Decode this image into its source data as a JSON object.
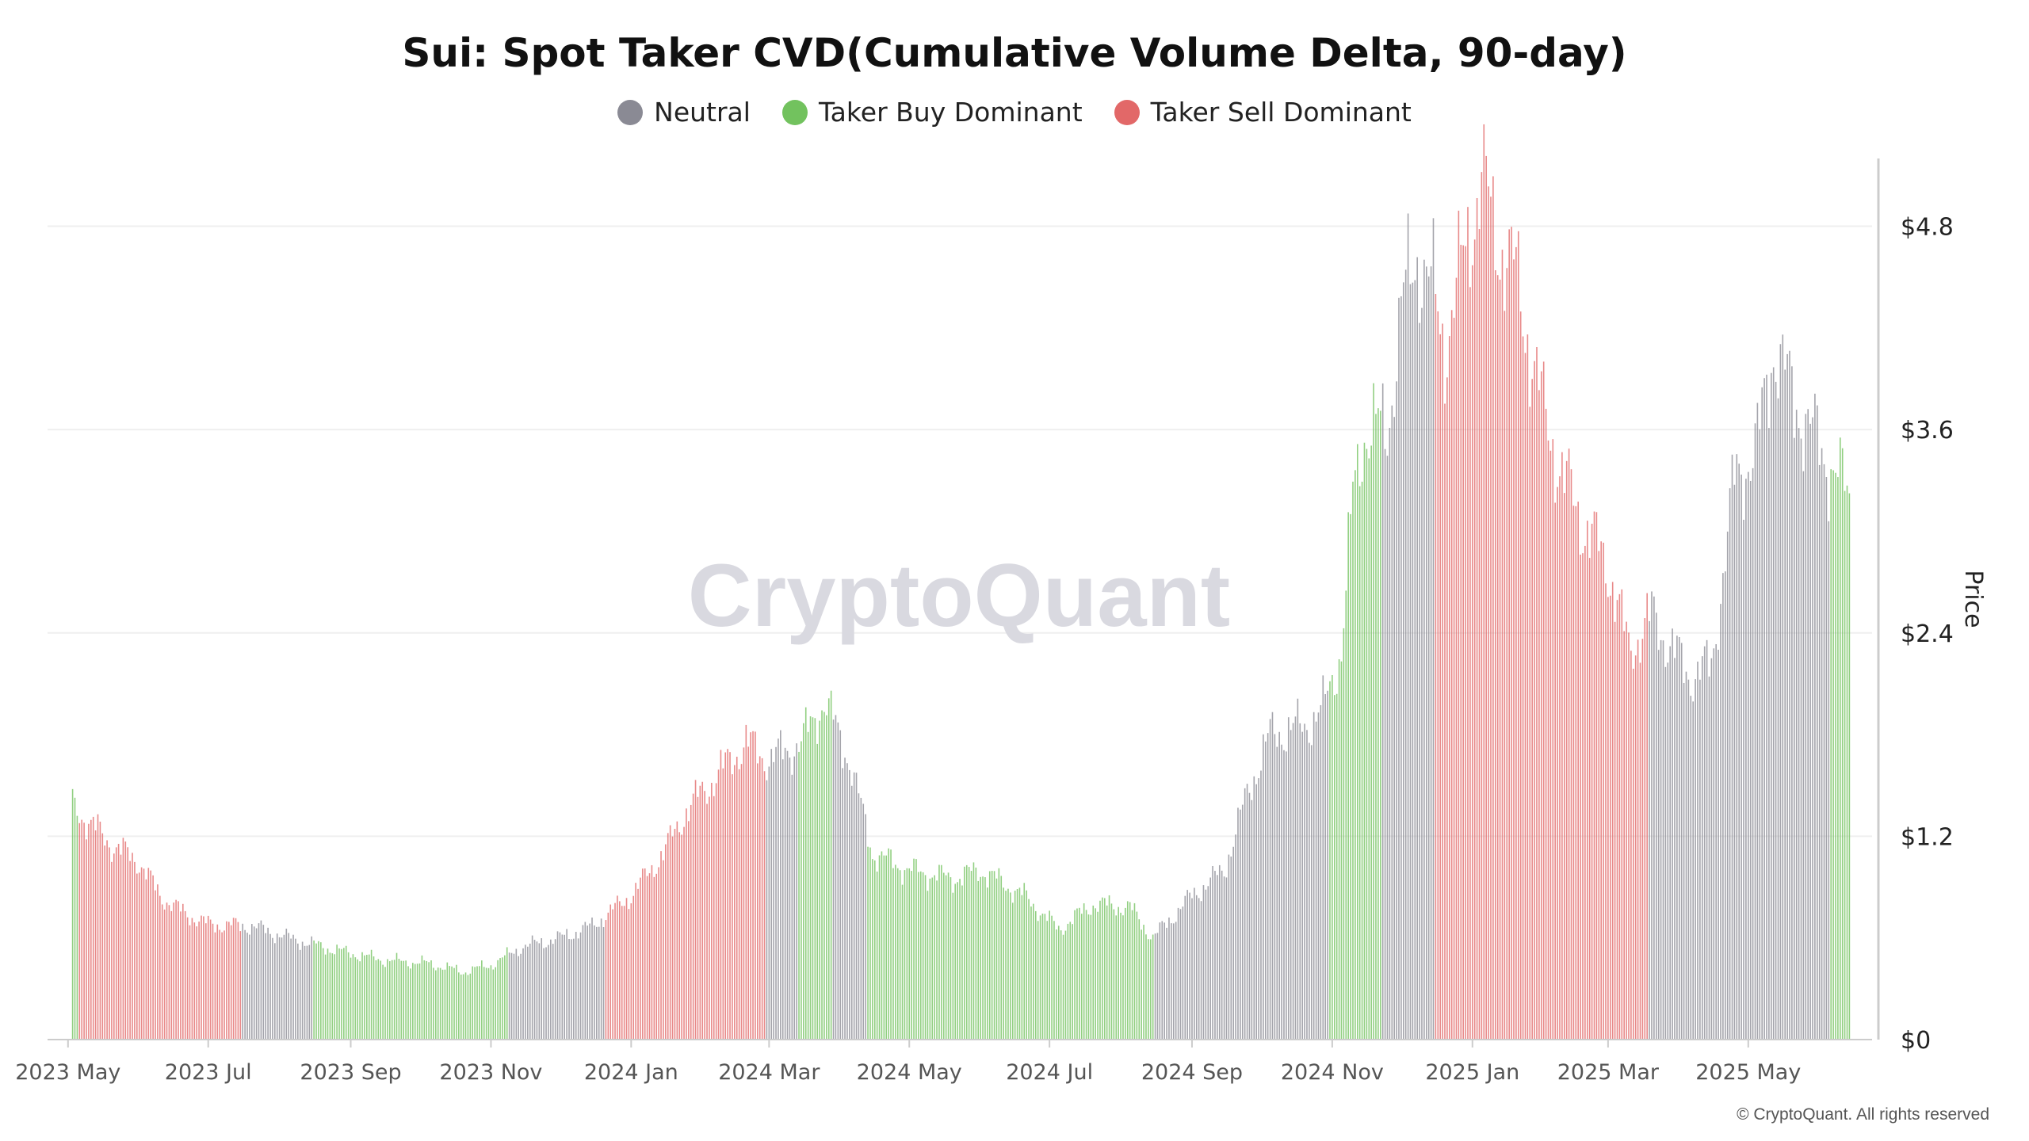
{
  "title": "Sui: Spot Taker CVD(Cumulative Volume Delta, 90-day)",
  "legend": [
    {
      "label": "Neutral",
      "color": "#8a8a94"
    },
    {
      "label": "Taker Buy Dominant",
      "color": "#72c25e"
    },
    {
      "label": "Taker Sell Dominant",
      "color": "#e26868"
    }
  ],
  "watermark": "CryptoQuant",
  "copyright": "© CryptoQuant. All rights reserved",
  "chart_data": {
    "type": "bar",
    "ylabel": "Price",
    "ylim": [
      0,
      5.2
    ],
    "yticks": [
      0,
      1.2,
      2.4,
      3.6,
      4.8
    ],
    "ytick_labels": [
      "$0",
      "$1.2",
      "$2.4",
      "$3.6",
      "$4.8"
    ],
    "x_tick_labels": [
      "2023 May",
      "2023 Jul",
      "2023 Sep",
      "2023 Nov",
      "2024 Jan",
      "2024 Mar",
      "2024 May",
      "2024 Jul",
      "2024 Sep",
      "2024 Nov",
      "2025 Jan",
      "2025 Mar",
      "2025 May"
    ],
    "grid": true,
    "legend_position": "top-center",
    "segments": [
      {
        "start": "2023-05-03",
        "end": "2023-05-05",
        "regime": "Taker Buy Dominant",
        "price_start": 1.38,
        "price_end": 1.35
      },
      {
        "start": "2023-05-06",
        "end": "2023-06-05",
        "regime": "Taker Sell Dominant",
        "price_start": 1.25,
        "price_end": 0.98
      },
      {
        "start": "2023-06-06",
        "end": "2023-07-15",
        "regime": "Taker Sell Dominant",
        "price_start": 0.95,
        "price_end": 0.62
      },
      {
        "start": "2023-07-16",
        "end": "2023-08-15",
        "regime": "Neutral",
        "price_start": 0.68,
        "price_end": 0.58
      },
      {
        "start": "2023-08-16",
        "end": "2023-09-20",
        "regime": "Taker Buy Dominant",
        "price_start": 0.58,
        "price_end": 0.44
      },
      {
        "start": "2023-09-21",
        "end": "2023-11-08",
        "regime": "Taker Buy Dominant",
        "price_start": 0.44,
        "price_end": 0.46
      },
      {
        "start": "2023-11-09",
        "end": "2023-12-20",
        "regime": "Neutral",
        "price_start": 0.52,
        "price_end": 0.68
      },
      {
        "start": "2023-12-21",
        "end": "2024-01-25",
        "regime": "Taker Sell Dominant",
        "price_start": 0.78,
        "price_end": 1.3
      },
      {
        "start": "2024-01-26",
        "end": "2024-02-28",
        "regime": "Taker Sell Dominant",
        "price_start": 1.45,
        "price_end": 1.7
      },
      {
        "start": "2024-02-29",
        "end": "2024-03-13",
        "regime": "Neutral",
        "price_start": 1.58,
        "price_end": 1.62
      },
      {
        "start": "2024-03-14",
        "end": "2024-03-28",
        "regime": "Taker Buy Dominant",
        "price_start": 1.7,
        "price_end": 1.85
      },
      {
        "start": "2024-03-29",
        "end": "2024-04-12",
        "regime": "Neutral",
        "price_start": 1.7,
        "price_end": 1.3
      },
      {
        "start": "2024-04-13",
        "end": "2024-05-20",
        "regime": "Taker Buy Dominant",
        "price_start": 1.25,
        "price_end": 0.95
      },
      {
        "start": "2024-05-21",
        "end": "2024-08-15",
        "regime": "Taker Buy Dominant",
        "price_start": 1.02,
        "price_end": 0.75
      },
      {
        "start": "2024-08-16",
        "end": "2024-09-28",
        "regime": "Neutral",
        "price_start": 0.78,
        "price_end": 1.6
      },
      {
        "start": "2024-09-29",
        "end": "2024-10-30",
        "regime": "Neutral",
        "price_start": 1.8,
        "price_end": 1.75
      },
      {
        "start": "2024-10-31",
        "end": "2024-11-22",
        "regime": "Taker Buy Dominant",
        "price_start": 2.4,
        "price_end": 3.4
      },
      {
        "start": "2024-11-23",
        "end": "2024-12-15",
        "regime": "Neutral",
        "price_start": 3.8,
        "price_end": 4.45
      },
      {
        "start": "2024-12-16",
        "end": "2025-01-10",
        "regime": "Taker Sell Dominant",
        "price_start": 4.2,
        "price_end": 4.6
      },
      {
        "start": "2025-01-11",
        "end": "2025-03-18",
        "regime": "Taker Sell Dominant",
        "price_start": 4.0,
        "price_end": 2.3
      },
      {
        "start": "2025-03-19",
        "end": "2025-05-10",
        "regime": "Neutral",
        "price_start": 2.4,
        "price_end": 3.5
      },
      {
        "start": "2025-05-11",
        "end": "2025-06-05",
        "regime": "Neutral",
        "price_start": 3.7,
        "price_end": 3.3
      },
      {
        "start": "2025-06-06",
        "end": "2025-06-14",
        "regime": "Taker Buy Dominant",
        "price_start": 3.3,
        "price_end": 3.2
      }
    ],
    "anchors": [
      [
        "2023-05-03",
        1.38
      ],
      [
        "2023-05-20",
        1.15
      ],
      [
        "2023-06-01",
        1.05
      ],
      [
        "2023-06-10",
        0.85
      ],
      [
        "2023-06-20",
        0.75
      ],
      [
        "2023-07-01",
        0.68
      ],
      [
        "2023-07-20",
        0.67
      ],
      [
        "2023-08-05",
        0.6
      ],
      [
        "2023-08-25",
        0.53
      ],
      [
        "2023-09-15",
        0.47
      ],
      [
        "2023-10-05",
        0.45
      ],
      [
        "2023-10-20",
        0.4
      ],
      [
        "2023-11-01",
        0.44
      ],
      [
        "2023-11-15",
        0.55
      ],
      [
        "2023-12-01",
        0.6
      ],
      [
        "2023-12-15",
        0.67
      ],
      [
        "2024-01-01",
        0.85
      ],
      [
        "2024-01-15",
        1.1
      ],
      [
        "2024-01-25",
        1.35
      ],
      [
        "2024-02-10",
        1.6
      ],
      [
        "2024-02-20",
        1.75
      ],
      [
        "2024-03-01",
        1.65
      ],
      [
        "2024-03-15",
        1.75
      ],
      [
        "2024-03-25",
        2.0
      ],
      [
        "2024-04-05",
        1.65
      ],
      [
        "2024-04-15",
        1.1
      ],
      [
        "2024-05-01",
        1.0
      ],
      [
        "2024-05-20",
        0.95
      ],
      [
        "2024-06-01",
        1.0
      ],
      [
        "2024-06-20",
        0.85
      ],
      [
        "2024-07-05",
        0.65
      ],
      [
        "2024-07-20",
        0.8
      ],
      [
        "2024-08-05",
        0.78
      ],
      [
        "2024-08-15",
        0.6
      ],
      [
        "2024-09-01",
        0.85
      ],
      [
        "2024-09-15",
        1.0
      ],
      [
        "2024-09-25",
        1.45
      ],
      [
        "2024-10-05",
        1.8
      ],
      [
        "2024-10-20",
        1.85
      ],
      [
        "2024-10-28",
        1.95
      ],
      [
        "2024-11-05",
        2.3
      ],
      [
        "2024-11-10",
        3.2
      ],
      [
        "2024-11-15",
        3.6
      ],
      [
        "2024-11-25",
        3.6
      ],
      [
        "2024-12-01",
        4.3
      ],
      [
        "2024-12-08",
        4.65
      ],
      [
        "2024-12-15",
        4.4
      ],
      [
        "2024-12-20",
        4.1
      ],
      [
        "2025-01-05",
        5.1
      ],
      [
        "2025-01-10",
        4.8
      ],
      [
        "2025-01-20",
        4.5
      ],
      [
        "2025-02-01",
        3.7
      ],
      [
        "2025-02-10",
        3.3
      ],
      [
        "2025-02-20",
        3.0
      ],
      [
        "2025-03-01",
        2.8
      ],
      [
        "2025-03-10",
        2.3
      ],
      [
        "2025-03-20",
        2.5
      ],
      [
        "2025-04-05",
        2.15
      ],
      [
        "2025-04-15",
        2.2
      ],
      [
        "2025-04-25",
        3.3
      ],
      [
        "2025-05-05",
        3.5
      ],
      [
        "2025-05-12",
        4.1
      ],
      [
        "2025-05-20",
        3.8
      ],
      [
        "2025-06-01",
        3.5
      ],
      [
        "2025-06-14",
        3.2
      ]
    ]
  }
}
